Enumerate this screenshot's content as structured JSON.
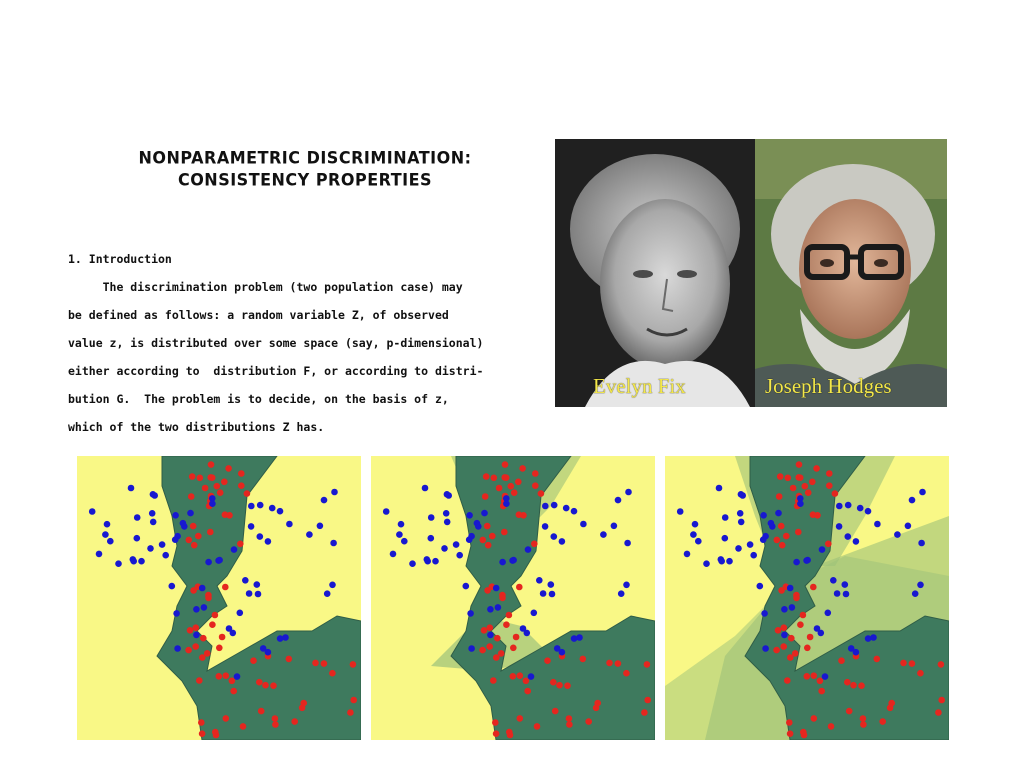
{
  "paper": {
    "title_line1": "NONPARAMETRIC DISCRIMINATION:",
    "title_line2": "CONSISTENCY   PROPERTIES",
    "section_heading": "1. Introduction",
    "lines": [
      "     The discrimination problem (two population case) may",
      "be defined as follows: a random variable Z, of observed",
      "value z, is distributed over some space (say, p-dimensional)",
      "either according to  distribution F, or according to distri-",
      "bution G.  The problem is to decide, on the basis of z,",
      "which of the two distributions Z has."
    ]
  },
  "photos": {
    "left_caption": "Evelyn Fix",
    "right_caption": "Joseph Hodges"
  },
  "plots": {
    "count": 3,
    "colors": {
      "background": "#f9f886",
      "region": "#3e7a5e",
      "region_light": "#9cc27a",
      "class_a": "#e5261f",
      "class_b": "#1818d0"
    }
  }
}
